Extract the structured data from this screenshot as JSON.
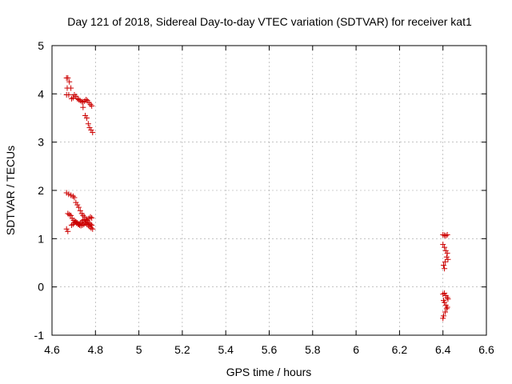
{
  "chart_data": {
    "type": "scatter",
    "title": "Day 121 of 2018, Sidereal Day-to-day VTEC variation (SDTVAR) for receiver kat1",
    "xlabel": "GPS time / hours",
    "ylabel": "SDTVAR / TECUs",
    "xlim": [
      4.6,
      6.6
    ],
    "ylim": [
      -1,
      5
    ],
    "xticks": [
      4.6,
      4.8,
      5.0,
      5.2,
      5.4,
      5.6,
      5.8,
      6.0,
      6.2,
      6.4,
      6.6
    ],
    "xtick_labels": [
      "4.6",
      "4.8",
      "5",
      "5.2",
      "5.4",
      "5.6",
      "5.8",
      "6",
      "6.2",
      "6.4",
      "6.6"
    ],
    "yticks": [
      -1,
      0,
      1,
      2,
      3,
      4,
      5
    ],
    "ytick_labels": [
      "-1",
      "0",
      "1",
      "2",
      "3",
      "4",
      "5"
    ],
    "grid": true,
    "marker": "plus",
    "color": "#cc0000",
    "series": [
      {
        "name": "SDTVAR",
        "points": [
          [
            4.667,
            4.33
          ],
          [
            4.673,
            4.33
          ],
          [
            4.68,
            4.25
          ],
          [
            4.67,
            4.12
          ],
          [
            4.687,
            4.12
          ],
          [
            4.667,
            3.98
          ],
          [
            4.677,
            3.98
          ],
          [
            4.69,
            3.9
          ],
          [
            4.697,
            3.92
          ],
          [
            4.703,
            3.98
          ],
          [
            4.71,
            3.95
          ],
          [
            4.717,
            3.9
          ],
          [
            4.723,
            3.88
          ],
          [
            4.73,
            3.86
          ],
          [
            4.737,
            3.84
          ],
          [
            4.743,
            3.83
          ],
          [
            4.75,
            3.85
          ],
          [
            4.757,
            3.88
          ],
          [
            4.763,
            3.86
          ],
          [
            4.77,
            3.82
          ],
          [
            4.777,
            3.78
          ],
          [
            4.783,
            3.75
          ],
          [
            4.743,
            3.72
          ],
          [
            4.753,
            3.55
          ],
          [
            4.76,
            3.5
          ],
          [
            4.767,
            3.38
          ],
          [
            4.773,
            3.3
          ],
          [
            4.78,
            3.25
          ],
          [
            4.787,
            3.2
          ],
          [
            4.667,
            1.95
          ],
          [
            4.677,
            1.92
          ],
          [
            4.687,
            1.9
          ],
          [
            4.697,
            1.88
          ],
          [
            4.703,
            1.85
          ],
          [
            4.71,
            1.75
          ],
          [
            4.717,
            1.7
          ],
          [
            4.723,
            1.65
          ],
          [
            4.73,
            1.58
          ],
          [
            4.737,
            1.52
          ],
          [
            4.743,
            1.48
          ],
          [
            4.75,
            1.45
          ],
          [
            4.757,
            1.4
          ],
          [
            4.763,
            1.38
          ],
          [
            4.77,
            1.42
          ],
          [
            4.777,
            1.45
          ],
          [
            4.783,
            1.43
          ],
          [
            4.673,
            1.52
          ],
          [
            4.68,
            1.5
          ],
          [
            4.687,
            1.48
          ],
          [
            4.693,
            1.42
          ],
          [
            4.7,
            1.38
          ],
          [
            4.707,
            1.35
          ],
          [
            4.713,
            1.32
          ],
          [
            4.72,
            1.3
          ],
          [
            4.727,
            1.28
          ],
          [
            4.733,
            1.27
          ],
          [
            4.74,
            1.28
          ],
          [
            4.747,
            1.3
          ],
          [
            4.753,
            1.32
          ],
          [
            4.76,
            1.3
          ],
          [
            4.767,
            1.28
          ],
          [
            4.773,
            1.25
          ],
          [
            4.78,
            1.22
          ],
          [
            4.787,
            1.2
          ],
          [
            4.69,
            1.28
          ],
          [
            4.697,
            1.3
          ],
          [
            4.703,
            1.33
          ],
          [
            4.71,
            1.35
          ],
          [
            4.717,
            1.33
          ],
          [
            4.723,
            1.3
          ],
          [
            4.73,
            1.32
          ],
          [
            4.737,
            1.35
          ],
          [
            4.743,
            1.38
          ],
          [
            4.75,
            1.4
          ],
          [
            4.757,
            1.38
          ],
          [
            4.763,
            1.35
          ],
          [
            4.77,
            1.32
          ],
          [
            4.777,
            1.3
          ],
          [
            4.783,
            1.28
          ],
          [
            4.667,
            1.2
          ],
          [
            4.673,
            1.15
          ],
          [
            6.4,
            1.08
          ],
          [
            6.407,
            1.07
          ],
          [
            6.413,
            1.06
          ],
          [
            6.42,
            1.08
          ],
          [
            6.4,
            0.88
          ],
          [
            6.407,
            0.82
          ],
          [
            6.413,
            0.75
          ],
          [
            6.42,
            0.7
          ],
          [
            6.417,
            0.62
          ],
          [
            6.423,
            0.57
          ],
          [
            6.41,
            0.52
          ],
          [
            6.403,
            0.45
          ],
          [
            6.407,
            0.38
          ],
          [
            6.4,
            -0.15
          ],
          [
            6.407,
            -0.13
          ],
          [
            6.413,
            -0.18
          ],
          [
            6.42,
            -0.22
          ],
          [
            6.423,
            -0.25
          ],
          [
            6.403,
            -0.28
          ],
          [
            6.407,
            -0.32
          ],
          [
            6.413,
            -0.38
          ],
          [
            6.42,
            -0.42
          ],
          [
            6.417,
            -0.45
          ],
          [
            6.41,
            -0.52
          ],
          [
            6.403,
            -0.6
          ],
          [
            6.4,
            -0.65
          ]
        ]
      }
    ]
  }
}
